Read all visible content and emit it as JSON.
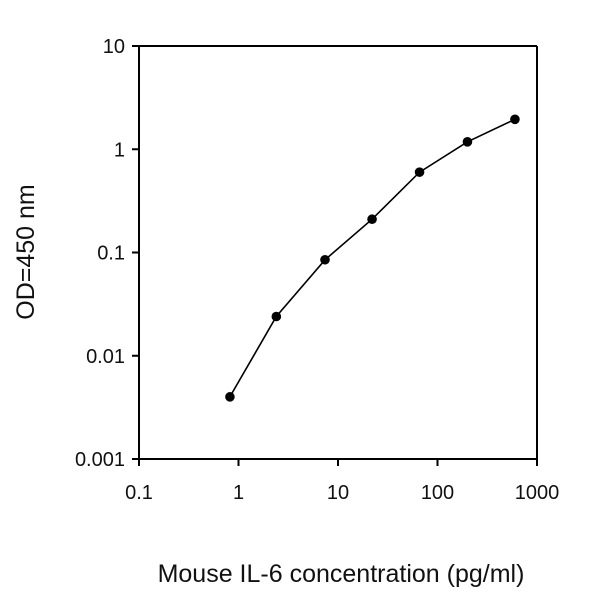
{
  "chart_data": {
    "type": "line",
    "title": "",
    "xlabel": "Mouse IL-6 concentration (pg/ml)",
    "ylabel": "OD=450 nm",
    "xscale": "log",
    "yscale": "log",
    "xlim": [
      0.1,
      1000
    ],
    "ylim": [
      0.001,
      10
    ],
    "x_ticks": [
      0.1,
      1,
      10,
      100,
      1000
    ],
    "x_tick_labels": [
      "0.1",
      "1",
      "10",
      "100",
      "1000"
    ],
    "y_ticks": [
      0.001,
      0.01,
      0.1,
      1,
      10
    ],
    "y_tick_labels": [
      "0.001",
      "0.01",
      "0.1",
      "1",
      "10"
    ],
    "grid": false,
    "legend": "none",
    "line_color": "#000000",
    "marker": "circle",
    "series": [
      {
        "x": [
          0.82,
          2.4,
          7.4,
          22,
          66,
          200,
          600
        ],
        "y": [
          0.004,
          0.024,
          0.085,
          0.21,
          0.6,
          1.18,
          1.95
        ]
      }
    ]
  }
}
